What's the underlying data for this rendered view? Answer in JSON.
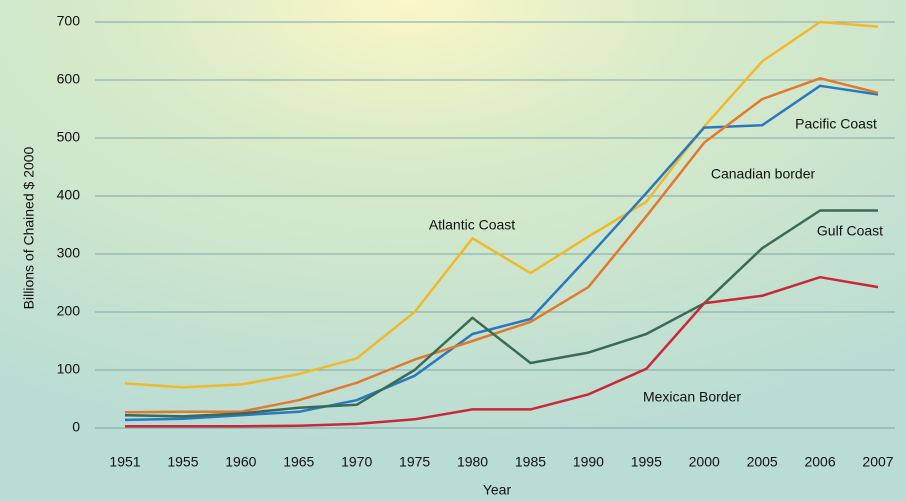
{
  "chart_data": {
    "type": "line",
    "xlabel": "Year",
    "ylabel": "Billions of Chained $ 2000",
    "categories": [
      "1951",
      "1955",
      "1960",
      "1965",
      "1970",
      "1975",
      "1980",
      "1985",
      "1990",
      "1995",
      "2000",
      "2005",
      "2006",
      "2007"
    ],
    "series": [
      {
        "name": "Atlantic Coast",
        "color": "#f0b92a",
        "values": [
          77,
          70,
          75,
          93,
          120,
          200,
          327,
          267,
          330,
          390,
          520,
          632,
          700,
          692
        ]
      },
      {
        "name": "Pacific Coast",
        "color": "#2a78c0",
        "values": [
          14,
          16,
          22,
          28,
          48,
          90,
          162,
          188,
          295,
          405,
          518,
          522,
          590,
          575
        ]
      },
      {
        "name": "Canadian border",
        "color": "#e07a2e",
        "values": [
          27,
          28,
          28,
          48,
          78,
          118,
          150,
          183,
          243,
          365,
          492,
          567,
          603,
          578
        ]
      },
      {
        "name": "Gulf Coast",
        "color": "#3a6b55",
        "values": [
          22,
          20,
          25,
          35,
          40,
          100,
          190,
          112,
          130,
          162,
          215,
          310,
          375,
          375
        ]
      },
      {
        "name": "Mexican Border",
        "color": "#c8283a",
        "values": [
          3,
          3,
          3,
          4,
          7,
          15,
          32,
          32,
          58,
          102,
          215,
          228,
          260,
          243
        ]
      }
    ],
    "ylim": [
      0,
      700
    ],
    "yticks": [
      0,
      100,
      200,
      300,
      400,
      500,
      600,
      700
    ],
    "grid": true
  }
}
